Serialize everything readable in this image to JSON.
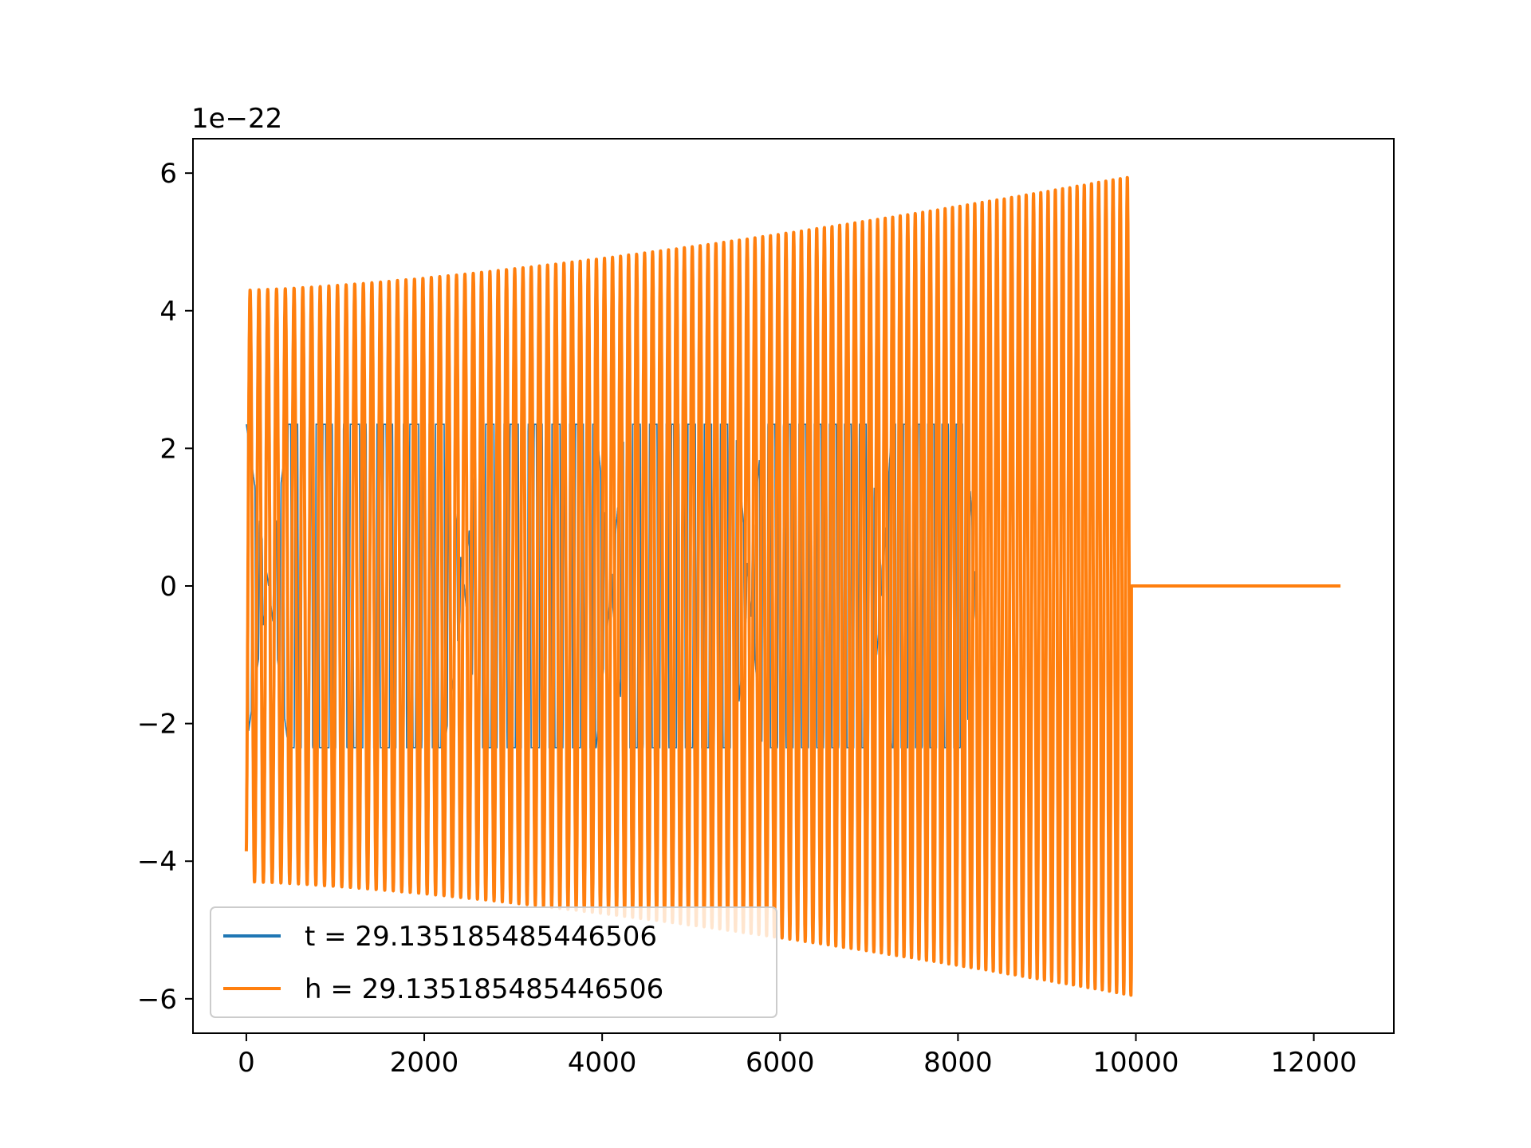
{
  "chart_data": {
    "type": "line",
    "title": "",
    "xlabel": "",
    "ylabel": "",
    "y_offset_label": "1e−22",
    "y_scale": 1e-22,
    "xlim": [
      -600,
      12900
    ],
    "ylim": [
      -6.5e-22,
      6.5e-22
    ],
    "xticks": [
      0,
      2000,
      4000,
      6000,
      8000,
      10000,
      12000
    ],
    "xtick_labels": [
      "0",
      "2000",
      "4000",
      "6000",
      "8000",
      "10000",
      "12000"
    ],
    "yticks": [
      -6e-22,
      -4e-22,
      -2e-22,
      0,
      2e-22,
      4e-22,
      6e-22
    ],
    "ytick_labels": [
      "−6",
      "−4",
      "−2",
      "0",
      "2",
      "4",
      "6"
    ],
    "grid": false,
    "legend_position": "lower-left",
    "series": [
      {
        "name": "t = 29.135185485446506",
        "color": "#1f77b4",
        "linewidth": "thin",
        "waveform": "amplitude-modulated oscillation",
        "x_range": [
          0,
          8200
        ],
        "cycles": 100,
        "amplitude_start": 2.35e-22,
        "amplitude_end": 2.35e-22,
        "envelope_nodes_x": [
          250,
          2450,
          4100,
          5650,
          7150,
          8200
        ]
      },
      {
        "name": "h = 29.135185485446506",
        "color": "#ff7f0e",
        "linewidth": "thick",
        "waveform": "inspiral chirp",
        "x_range": [
          0,
          9950
        ],
        "cycles": 100,
        "amplitude_start": 4.3e-22,
        "amplitude_end": 5.95e-22,
        "zero_tail_x_range": [
          9950,
          12300
        ]
      }
    ]
  }
}
